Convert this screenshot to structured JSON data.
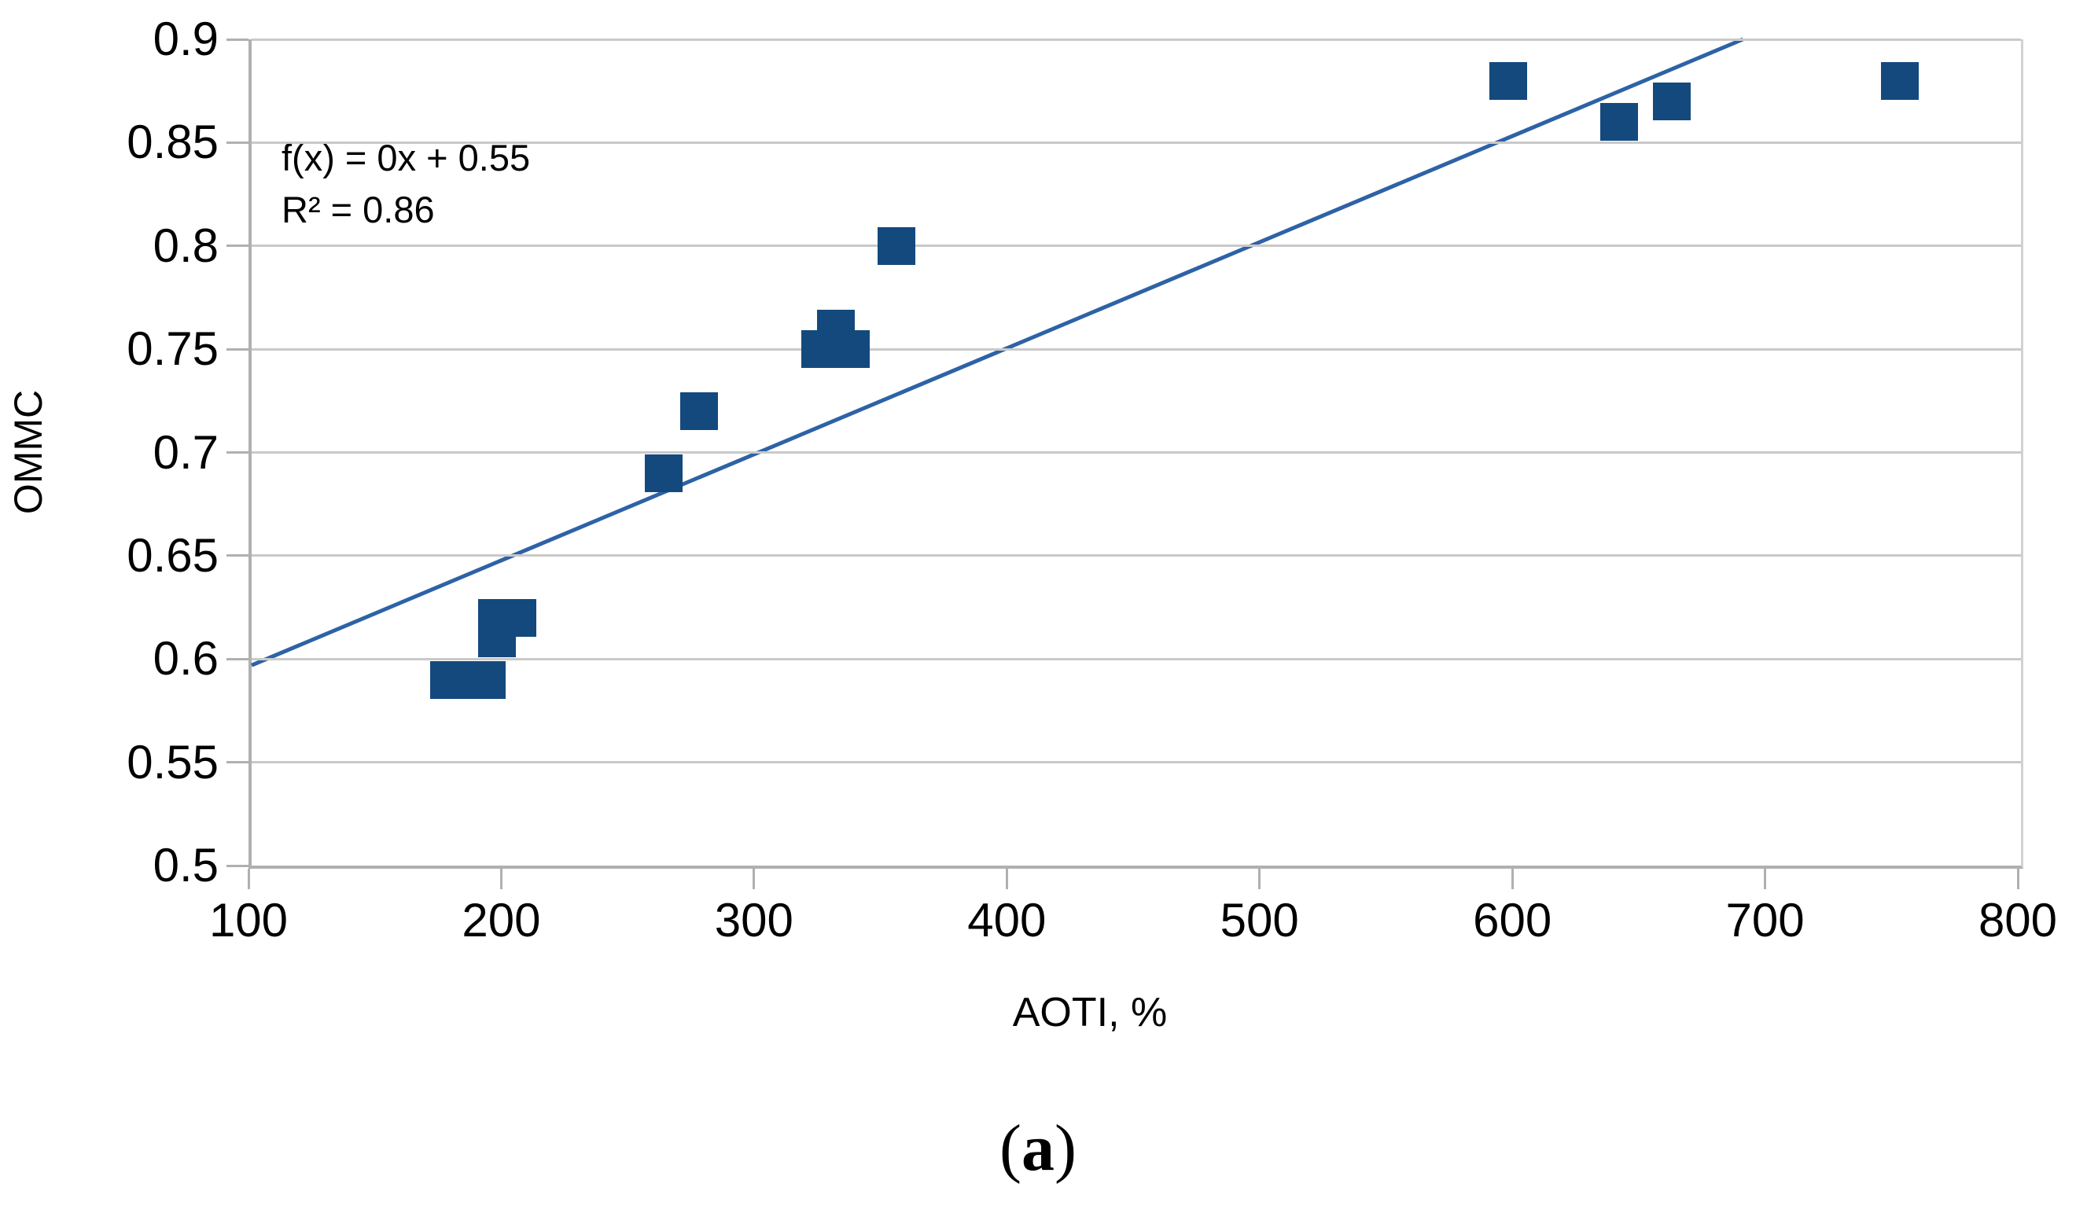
{
  "figure": {
    "caption": {
      "open": "(",
      "letter": "a",
      "close": ")"
    }
  },
  "chart_data": {
    "type": "scatter",
    "title": "",
    "xlabel": "AOTI, %",
    "ylabel": "OMMC",
    "xlim": [
      100,
      800
    ],
    "ylim": [
      0.5,
      0.9
    ],
    "grid": "horizontal",
    "legend_position": "none",
    "x_ticks": [
      {
        "v": 100,
        "label": "100"
      },
      {
        "v": 200,
        "label": "200"
      },
      {
        "v": 300,
        "label": "300"
      },
      {
        "v": 400,
        "label": "400"
      },
      {
        "v": 500,
        "label": "500"
      },
      {
        "v": 600,
        "label": "600"
      },
      {
        "v": 700,
        "label": "700"
      },
      {
        "v": 800,
        "label": "800"
      }
    ],
    "y_ticks": [
      {
        "v": 0.9,
        "label": "0.9"
      },
      {
        "v": 0.85,
        "label": "0.85"
      },
      {
        "v": 0.8,
        "label": "0.8"
      },
      {
        "v": 0.75,
        "label": "0.75"
      },
      {
        "v": 0.7,
        "label": "0.7"
      },
      {
        "v": 0.65,
        "label": "0.65"
      },
      {
        "v": 0.6,
        "label": "0.6"
      },
      {
        "v": 0.55,
        "label": "0.55"
      },
      {
        "v": 0.5,
        "label": "0.5"
      }
    ],
    "points": [
      {
        "x": 178,
        "y": 0.59
      },
      {
        "x": 193,
        "y": 0.59
      },
      {
        "x": 197,
        "y": 0.61
      },
      {
        "x": 197,
        "y": 0.62
      },
      {
        "x": 205,
        "y": 0.62
      },
      {
        "x": 263,
        "y": 0.69
      },
      {
        "x": 277,
        "y": 0.72
      },
      {
        "x": 325,
        "y": 0.75
      },
      {
        "x": 337,
        "y": 0.75
      },
      {
        "x": 331,
        "y": 0.76
      },
      {
        "x": 355,
        "y": 0.8
      },
      {
        "x": 597,
        "y": 0.88
      },
      {
        "x": 641,
        "y": 0.86
      },
      {
        "x": 662,
        "y": 0.87
      },
      {
        "x": 752,
        "y": 0.88
      }
    ],
    "trendline": {
      "x1": 100,
      "y1": 0.597,
      "x2": 690,
      "y2": 0.9,
      "equation": "f(x) = 0x + 0.55",
      "r_squared": "R² = 0.86"
    },
    "colors": {
      "marker": "#14497e",
      "trend": "#2e62a6",
      "grid": "#c9c9c9",
      "axis": "#b0b0b0",
      "text": "#000000"
    }
  }
}
